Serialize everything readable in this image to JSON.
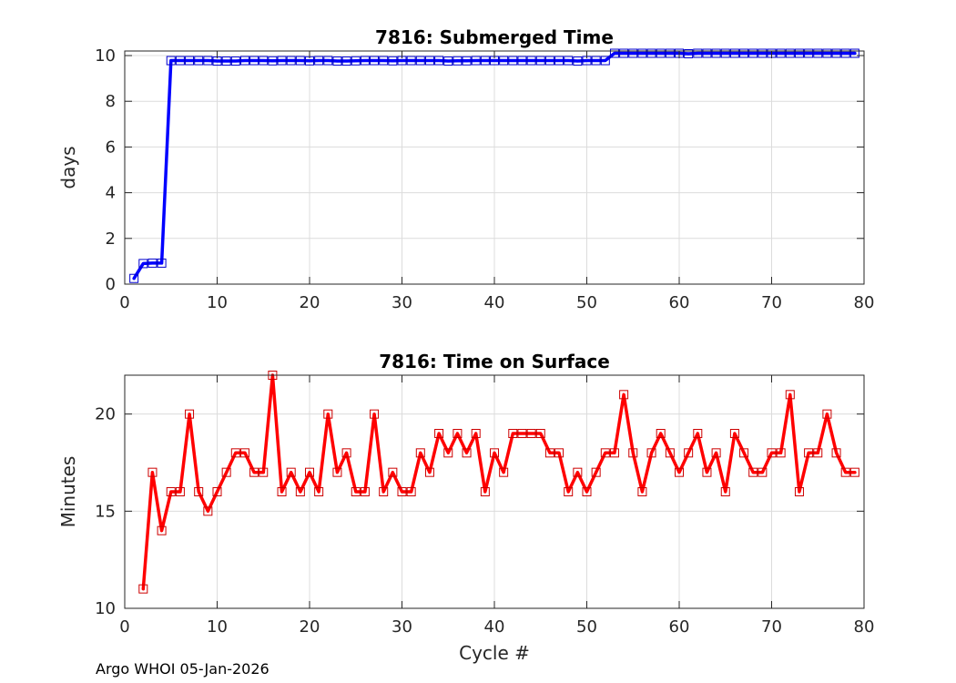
{
  "footer": "Argo WHOI 05-Jan-2026",
  "chart_data": [
    {
      "type": "line",
      "title": "7816: Submerged Time",
      "xlabel": "",
      "ylabel": "days",
      "xlim": [
        0,
        80
      ],
      "ylim": [
        0,
        10.2
      ],
      "xticks": [
        0,
        10,
        20,
        30,
        40,
        50,
        60,
        70,
        80
      ],
      "yticks": [
        0,
        2,
        4,
        6,
        8,
        10
      ],
      "grid": true,
      "color": "#0000ff",
      "marker": "square",
      "x": [
        1,
        2,
        3,
        4,
        5,
        6,
        7,
        8,
        9,
        10,
        11,
        12,
        13,
        14,
        15,
        16,
        17,
        18,
        19,
        20,
        21,
        22,
        23,
        24,
        25,
        26,
        27,
        28,
        29,
        30,
        31,
        32,
        33,
        34,
        35,
        36,
        37,
        38,
        39,
        40,
        41,
        42,
        43,
        44,
        45,
        46,
        47,
        48,
        49,
        50,
        51,
        52,
        53,
        54,
        55,
        56,
        57,
        58,
        59,
        60,
        61,
        62,
        63,
        64,
        65,
        66,
        67,
        68,
        69,
        70,
        71,
        72,
        73,
        74,
        75,
        76,
        77,
        78,
        79
      ],
      "y": [
        0.25,
        0.9,
        0.92,
        0.92,
        9.78,
        9.78,
        9.78,
        9.78,
        9.78,
        9.76,
        9.76,
        9.76,
        9.78,
        9.78,
        9.78,
        9.77,
        9.78,
        9.78,
        9.78,
        9.77,
        9.78,
        9.78,
        9.76,
        9.76,
        9.77,
        9.78,
        9.78,
        9.78,
        9.77,
        9.78,
        9.78,
        9.78,
        9.78,
        9.78,
        9.76,
        9.77,
        9.77,
        9.78,
        9.78,
        9.78,
        9.78,
        9.78,
        9.78,
        9.78,
        9.78,
        9.78,
        9.78,
        9.78,
        9.76,
        9.78,
        9.78,
        9.78,
        10.1,
        10.1,
        10.1,
        10.1,
        10.1,
        10.1,
        10.1,
        10.1,
        10.08,
        10.1,
        10.1,
        10.1,
        10.1,
        10.1,
        10.1,
        10.1,
        10.1,
        10.1,
        10.1,
        10.1,
        10.1,
        10.1,
        10.1,
        10.1,
        10.1,
        10.1,
        10.1
      ]
    },
    {
      "type": "line",
      "title": "7816: Time on Surface",
      "xlabel": "Cycle #",
      "ylabel": "Minutes",
      "xlim": [
        0,
        80
      ],
      "ylim": [
        10,
        22
      ],
      "xticks": [
        0,
        10,
        20,
        30,
        40,
        50,
        60,
        70,
        80
      ],
      "yticks": [
        10,
        15,
        20
      ],
      "grid": true,
      "color": "#ff0000",
      "marker": "square",
      "x": [
        2,
        3,
        4,
        5,
        6,
        7,
        8,
        9,
        10,
        11,
        12,
        13,
        14,
        15,
        16,
        17,
        18,
        19,
        20,
        21,
        22,
        23,
        24,
        25,
        26,
        27,
        28,
        29,
        30,
        31,
        32,
        33,
        34,
        35,
        36,
        37,
        38,
        39,
        40,
        41,
        42,
        43,
        44,
        45,
        46,
        47,
        48,
        49,
        50,
        51,
        52,
        53,
        54,
        55,
        56,
        57,
        58,
        59,
        60,
        61,
        62,
        63,
        64,
        65,
        66,
        67,
        68,
        69,
        70,
        71,
        72,
        73,
        74,
        75,
        76,
        77,
        78,
        79
      ],
      "y": [
        11,
        17,
        14,
        16,
        16,
        20,
        16,
        15,
        16,
        17,
        18,
        18,
        17,
        17,
        22,
        16,
        17,
        16,
        17,
        16,
        20,
        17,
        18,
        16,
        16,
        20,
        16,
        17,
        16,
        16,
        18,
        17,
        19,
        18,
        19,
        18,
        19,
        16,
        18,
        17,
        19,
        19,
        19,
        19,
        18,
        18,
        16,
        17,
        16,
        17,
        18,
        18,
        21,
        18,
        16,
        18,
        19,
        18,
        17,
        18,
        19,
        17,
        18,
        16,
        19,
        18,
        17,
        17,
        18,
        18,
        21,
        16,
        18,
        18,
        20,
        18,
        17,
        17
      ]
    }
  ]
}
